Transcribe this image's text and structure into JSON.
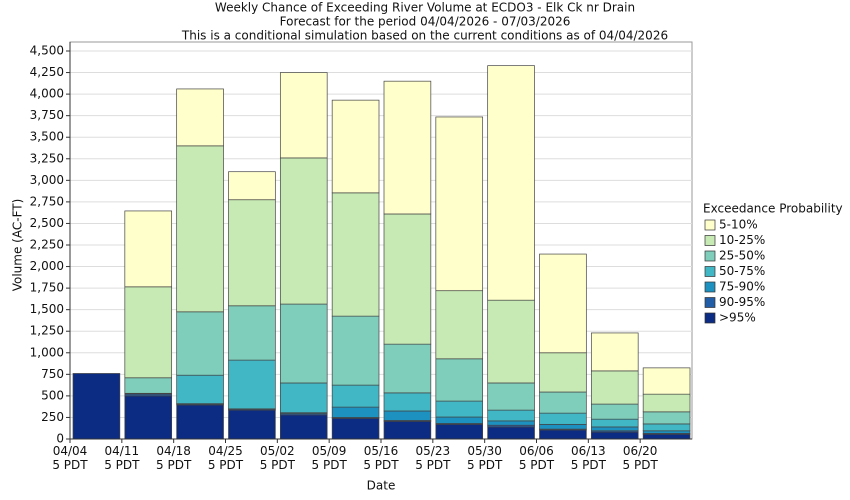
{
  "chart_data": {
    "type": "stacked_bar",
    "title": "Weekly Chance of Exceeding River Volume at ECDO3 - Elk Ck nr Drain",
    "subtitle": "Forecast for the period 04/04/2026 - 07/03/2026",
    "note": "This is a conditional simulation based on the current conditions as of 04/04/2026",
    "x_label": "Date",
    "y_label": "Volume (AC-FT)",
    "legend_title": "Exceedance Probability",
    "categories": [
      "04/04 5 PDT",
      "04/11 5 PDT",
      "04/18 5 PDT",
      "04/25 5 PDT",
      "05/02 5 PDT",
      "05/09 5 PDT",
      "05/16 5 PDT",
      "05/23 5 PDT",
      "05/30 5 PDT",
      "06/06 5 PDT",
      "06/13 5 PDT",
      "06/20 5 PDT"
    ],
    "series": [
      {
        "name": ">95%",
        "color": "#0c2c84",
        "values": [
          760,
          500,
          395,
          335,
          280,
          240,
          205,
          170,
          140,
          105,
          80,
          55
        ]
      },
      {
        "name": "90-95%",
        "color": "#225ea8",
        "values": [
          0,
          20,
          10,
          10,
          15,
          10,
          10,
          10,
          20,
          10,
          15,
          10
        ]
      },
      {
        "name": "75-90%",
        "color": "#1d91c0",
        "values": [
          0,
          5,
          5,
          5,
          10,
          120,
          110,
          75,
          50,
          55,
          45,
          30
        ]
      },
      {
        "name": "50-75%",
        "color": "#41b6c4",
        "values": [
          0,
          5,
          330,
          565,
          345,
          255,
          210,
          185,
          125,
          130,
          90,
          80
        ]
      },
      {
        "name": "25-50%",
        "color": "#7fcdbb",
        "values": [
          0,
          180,
          735,
          630,
          915,
          800,
          565,
          490,
          315,
          245,
          175,
          140
        ]
      },
      {
        "name": "10-25%",
        "color": "#c7e9b4",
        "values": [
          0,
          1055,
          1925,
          1230,
          1695,
          1430,
          1510,
          790,
          960,
          455,
          385,
          205
        ]
      },
      {
        "name": "5-10%",
        "color": "#ffffcc",
        "values": [
          0,
          880,
          660,
          325,
          990,
          1075,
          1540,
          2015,
          2720,
          1145,
          440,
          305
        ]
      }
    ],
    "ylim": [
      0,
      4500
    ],
    "yticks": [
      0,
      250,
      500,
      750,
      {
        "value": 1000,
        "label": "1,000"
      },
      {
        "value": 1250,
        "label": "1,250"
      },
      {
        "value": 1500,
        "label": "1,500"
      },
      {
        "value": 1750,
        "label": "1,750"
      },
      {
        "value": 2000,
        "label": "2,000"
      },
      {
        "value": 2250,
        "label": "2,250"
      },
      {
        "value": 2500,
        "label": "2,500"
      },
      {
        "value": 2750,
        "label": "2,750"
      },
      {
        "value": 3000,
        "label": "3,000"
      },
      {
        "value": 3250,
        "label": "3,250"
      },
      {
        "value": 3500,
        "label": "3,500"
      },
      {
        "value": 3750,
        "label": "3,750"
      },
      {
        "value": 4000,
        "label": "4,000"
      },
      {
        "value": 4250,
        "label": "4,250"
      },
      {
        "value": 4500,
        "label": "4,500"
      }
    ],
    "grid": true
  }
}
